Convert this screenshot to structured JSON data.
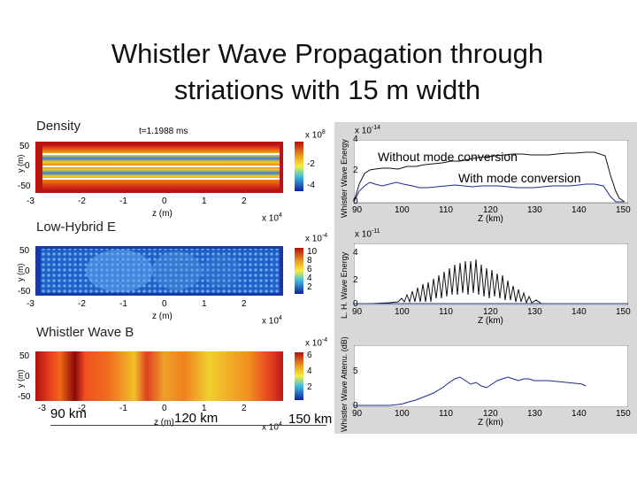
{
  "title_line1": "Whistler Wave Propagation through",
  "title_line2": "striations with 15 m width",
  "left": {
    "density": {
      "label": "Density",
      "time": "t=1.1988 ms",
      "ylabel": "y (m)",
      "yticks": [
        "50",
        "0",
        "-50"
      ],
      "xticks": [
        "-3",
        "-2",
        "-1",
        "0",
        "1",
        "2"
      ],
      "xlabel": "z (m)",
      "xmult": "x 10",
      "xmult_exp": "4",
      "cbar_mult": "x 10",
      "cbar_exp": "8",
      "cbar_ticks": [
        "-2",
        "-4"
      ]
    },
    "lowhybrid": {
      "label": "Low-Hybrid E",
      "ylabel": "y (m)",
      "yticks": [
        "50",
        "0",
        "-50"
      ],
      "xticks": [
        "-3",
        "-2",
        "-1",
        "0",
        "1",
        "2"
      ],
      "xlabel": "z (m)",
      "xmult": "x 10",
      "xmult_exp": "4",
      "cbar_mult": "x 10",
      "cbar_exp": "-4",
      "cbar_ticks": [
        "10",
        "8",
        "6",
        "4",
        "2"
      ]
    },
    "whistler": {
      "label": "Whistler Wave B",
      "ylabel": "y (m)",
      "yticks": [
        "50",
        "0",
        "-50"
      ],
      "xticks": [
        "-3",
        "-2",
        "-1",
        "0",
        "1",
        "2"
      ],
      "xlabel": "z (m)",
      "xmult": "x 10",
      "xmult_exp": "4",
      "cbar_mult": "x 10",
      "cbar_exp": "-4",
      "cbar_ticks": [
        "6",
        "4",
        "2"
      ]
    },
    "distances": [
      "90 km",
      "120 km",
      "150 km"
    ]
  },
  "right": {
    "energy": {
      "ylabel": "Whistler Wave Energy",
      "mult": "x 10",
      "mult_exp": "-14",
      "yticks": [
        "4",
        "2",
        "0"
      ],
      "xticks": [
        "90",
        "100",
        "110",
        "120",
        "130",
        "140",
        "150"
      ],
      "xlabel": "Z (km)",
      "legend1": "Without mode conversion",
      "legend2": "With mode conversion"
    },
    "lh": {
      "ylabel": "L. H. Wave Energy",
      "mult": "x 10",
      "mult_exp": "-11",
      "yticks": [
        "4",
        "2",
        "0"
      ],
      "xticks": [
        "90",
        "100",
        "110",
        "120",
        "130",
        "140",
        "150"
      ],
      "xlabel": "Z (km)"
    },
    "attenu": {
      "ylabel": "Whistler Wave Attenu. (dB)",
      "yticks": [
        "5",
        "0"
      ],
      "xticks": [
        "90",
        "100",
        "110",
        "120",
        "130",
        "140",
        "150"
      ],
      "xlabel": "Z (km)"
    }
  },
  "colors": {
    "energy_line": "#111111",
    "mode_line": "#1a2a8a",
    "attenu_line": "#1a2a8a",
    "panel_bg": "#ffffff",
    "frame_bg": "#d8d8d8"
  }
}
